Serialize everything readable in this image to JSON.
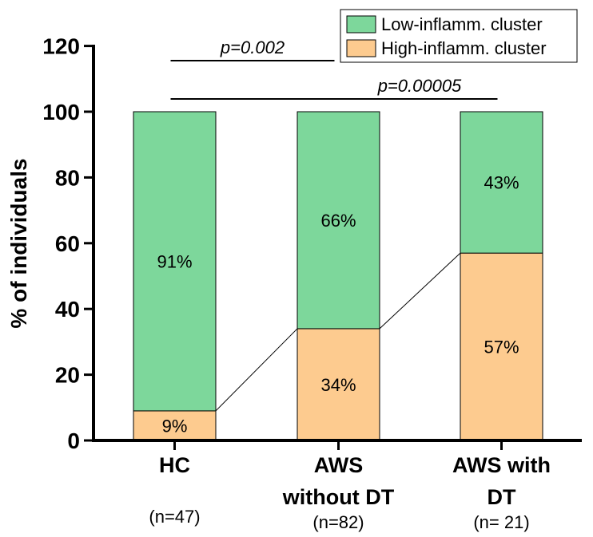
{
  "chart_data": {
    "type": "bar",
    "stacked": true,
    "ylabel": "% of individuals",
    "ylim": [
      0,
      120
    ],
    "yticks": [
      "0",
      "20",
      "40",
      "60",
      "80",
      "100",
      "120"
    ],
    "categories": [
      {
        "line1": "HC",
        "line2": "",
        "n": "(n=47)"
      },
      {
        "line1": "AWS",
        "line2": "without DT",
        "n": "(n=82)"
      },
      {
        "line1": "AWS with",
        "line2": "DT",
        "n": "(n= 21)"
      }
    ],
    "series": [
      {
        "name": "High-inflamm. cluster",
        "color": "#fdcb8f",
        "values": [
          9,
          34,
          57
        ],
        "labels": [
          "9%",
          "34%",
          "57%"
        ]
      },
      {
        "name": "Low-inflamm. cluster",
        "color": "#7dd79b",
        "values": [
          91,
          66,
          43
        ],
        "labels": [
          "91%",
          "66%",
          "43%"
        ]
      }
    ],
    "legend_order": [
      "Low-inflamm. cluster",
      "High-inflamm. cluster"
    ],
    "legend_position": "top-right",
    "grid": false,
    "annotations": [
      {
        "text": "p=0.002",
        "from": 0,
        "to": 1
      },
      {
        "text": "p=0.00005",
        "from": 0,
        "to": 2
      }
    ]
  }
}
